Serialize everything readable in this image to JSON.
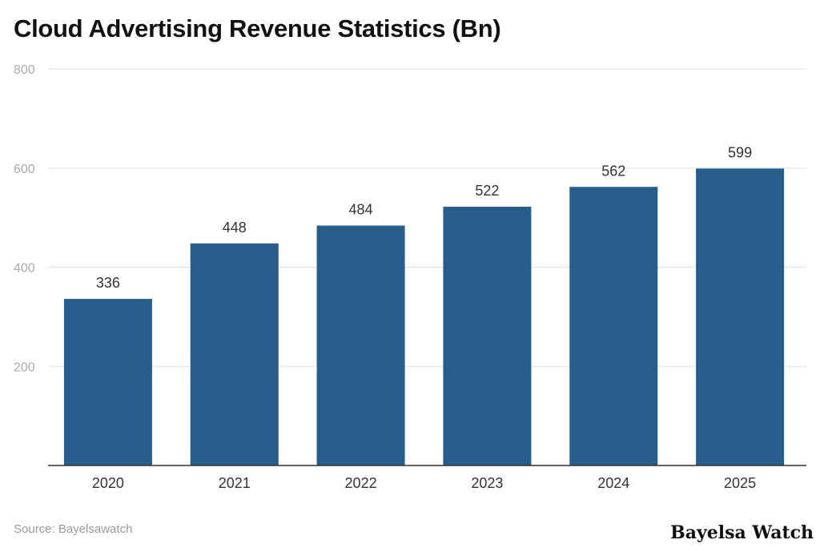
{
  "chart_data": {
    "type": "bar",
    "title": "Cloud Advertising Revenue Statistics (Bn)",
    "categories": [
      "2020",
      "2021",
      "2022",
      "2023",
      "2024",
      "2025"
    ],
    "values": [
      336,
      448,
      484,
      522,
      562,
      599
    ],
    "ylim": [
      0,
      800
    ],
    "yticks": [
      200,
      400,
      600,
      800
    ],
    "xlabel": "",
    "ylabel": "",
    "grid": true,
    "bar_color": "#275d8b"
  },
  "source": "Source: Bayelsawatch",
  "logo": "Bayelsa Watch"
}
